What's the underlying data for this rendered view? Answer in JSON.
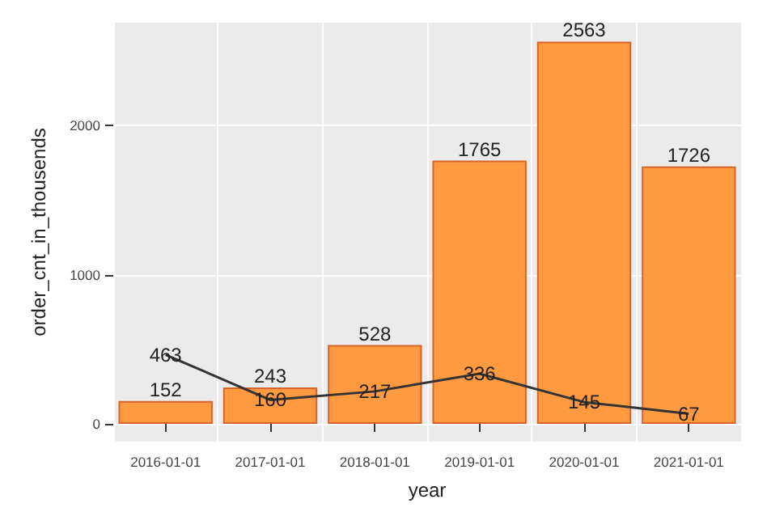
{
  "chart_data": {
    "type": "bar",
    "xlabel": "year",
    "ylabel": "order_cnt_in_thousends",
    "categories": [
      "2016-01-01",
      "2017-01-01",
      "2018-01-01",
      "2019-01-01",
      "2020-01-01",
      "2021-01-01"
    ],
    "series": [
      {
        "color": "#ff9a40",
        "values": [
          152,
          243,
          528,
          1765,
          2563,
          1726
        ]
      },
      {
        "type": "line",
        "color": "#333333",
        "values": [
          463,
          160,
          217,
          336,
          145,
          67
        ]
      }
    ],
    "ylim": [
      -120,
      2690
    ],
    "yticks": [
      0,
      1000,
      2000
    ],
    "grid": true,
    "data_labels": true,
    "marker": "none",
    "line_style": "solid"
  }
}
